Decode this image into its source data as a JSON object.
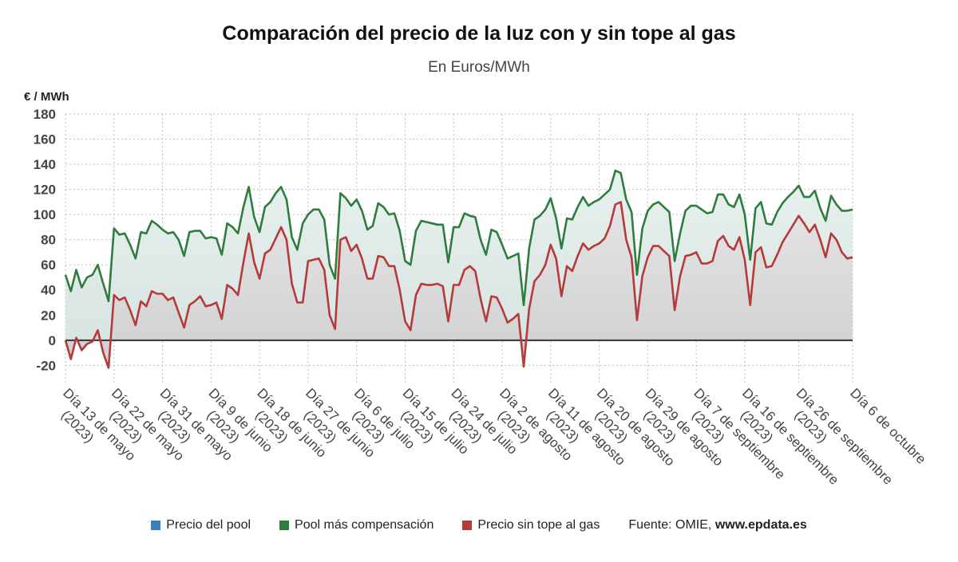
{
  "title": "Comparación del precio de la luz con y sin tope al gas",
  "subtitle": "En Euros/MWh",
  "y_unit": "€ / MWh",
  "legend": [
    {
      "label": "Precio del pool",
      "color": "#3a7fc1"
    },
    {
      "label": "Pool más compensación",
      "color": "#2e7d3e"
    },
    {
      "label": "Precio sin tope al gas",
      "color": "#b53a3a"
    }
  ],
  "source_prefix": "Fuente: OMIE, ",
  "source_site": "www.epdata.es",
  "chart_data": {
    "type": "line",
    "title": "Comparación del precio de la luz con y sin tope al gas",
    "subtitle": "En Euros/MWh",
    "ylabel": "€ / MWh",
    "ylim": [
      -35,
      180
    ],
    "yticks": [
      -20,
      0,
      20,
      40,
      60,
      80,
      100,
      120,
      140,
      160,
      180
    ],
    "grid": true,
    "legend_position": "bottom",
    "x_start": "2023-05-13",
    "x_end": "2023-10-06",
    "x_ticks": [
      {
        "date": "2023-05-13",
        "label": [
          "Día 13 de mayo",
          "(2023)"
        ]
      },
      {
        "date": "2023-05-22",
        "label": [
          "Día 22 de mayo",
          "(2023)"
        ]
      },
      {
        "date": "2023-05-31",
        "label": [
          "Día 31 de mayo",
          "(2023)"
        ]
      },
      {
        "date": "2023-06-09",
        "label": [
          "Día 9 de junio",
          "(2023)"
        ]
      },
      {
        "date": "2023-06-18",
        "label": [
          "Día 18 de junio",
          "(2023)"
        ]
      },
      {
        "date": "2023-06-27",
        "label": [
          "Día 27 de junio",
          "(2023)"
        ]
      },
      {
        "date": "2023-07-06",
        "label": [
          "Día 6 de julio",
          "(2023)"
        ]
      },
      {
        "date": "2023-07-15",
        "label": [
          "Día 15 de julio",
          "(2023)"
        ]
      },
      {
        "date": "2023-07-24",
        "label": [
          "Día 24 de julio",
          "(2023)"
        ]
      },
      {
        "date": "2023-08-02",
        "label": [
          "Día 2 de agosto",
          "(2023)"
        ]
      },
      {
        "date": "2023-08-11",
        "label": [
          "Día 11 de agosto",
          "(2023)"
        ]
      },
      {
        "date": "2023-08-20",
        "label": [
          "Día 20 de agosto",
          "(2023)"
        ]
      },
      {
        "date": "2023-08-29",
        "label": [
          "Día 29 de agosto",
          "(2023)"
        ]
      },
      {
        "date": "2023-09-07",
        "label": [
          "Día 7 de septiembre",
          "(2023)"
        ]
      },
      {
        "date": "2023-09-16",
        "label": [
          "Día 16 de septiembre",
          "(2023)"
        ]
      },
      {
        "date": "2023-09-26",
        "label": [
          "Día 26 de septiembre",
          "(2023)"
        ]
      },
      {
        "date": "2023-10-06",
        "label": [
          "Día 6 de octubre"
        ]
      }
    ],
    "series": [
      {
        "name": "Pool más compensación",
        "color": "#2e7d3e",
        "values": [
          52,
          39,
          56,
          42,
          50,
          52,
          60,
          45,
          31,
          89,
          84,
          85,
          76,
          65,
          86,
          85,
          95,
          92,
          88,
          85,
          86,
          80,
          67,
          86,
          87,
          87,
          81,
          82,
          81,
          68,
          93,
          90,
          85,
          106,
          122,
          98,
          86,
          106,
          110,
          117,
          122,
          112,
          82,
          72,
          93,
          100,
          104,
          104,
          96,
          60,
          49,
          117,
          113,
          107,
          112,
          103,
          88,
          91,
          109,
          106,
          100,
          101,
          87,
          63,
          60,
          87,
          95,
          94,
          93,
          92,
          92,
          62,
          90,
          90,
          101,
          99,
          98,
          80,
          68,
          88,
          86,
          76,
          65,
          67,
          69,
          28,
          73,
          96,
          99,
          104,
          113,
          97,
          73,
          97,
          96,
          106,
          114,
          107,
          110,
          112,
          116,
          120,
          135,
          133,
          112,
          102,
          52,
          89,
          103,
          108,
          110,
          106,
          102,
          63,
          85,
          103,
          107,
          107,
          104,
          101,
          102,
          116,
          116,
          108,
          106,
          116,
          100,
          64,
          105,
          110,
          93,
          92,
          102,
          109,
          114,
          118,
          123,
          114,
          114,
          119,
          105,
          95,
          115,
          108,
          103,
          103,
          104
        ]
      },
      {
        "name": "Precio sin tope al gas",
        "color": "#b53a3a",
        "values": [
          0,
          -15,
          2,
          -8,
          -3,
          -1,
          8,
          -10,
          -22,
          36,
          32,
          34,
          24,
          12,
          31,
          27,
          39,
          37,
          37,
          32,
          34,
          22,
          10,
          28,
          31,
          35,
          27,
          28,
          30,
          17,
          44,
          41,
          36,
          62,
          85,
          62,
          49,
          69,
          72,
          81,
          90,
          80,
          45,
          30,
          30,
          63,
          64,
          65,
          56,
          20,
          9,
          80,
          82,
          71,
          76,
          65,
          49,
          49,
          67,
          66,
          59,
          59,
          40,
          15,
          8,
          36,
          45,
          44,
          44,
          45,
          43,
          15,
          44,
          44,
          56,
          59,
          55,
          33,
          15,
          35,
          34,
          25,
          14,
          17,
          21,
          -21,
          25,
          47,
          52,
          60,
          76,
          65,
          35,
          59,
          55,
          67,
          77,
          72,
          75,
          77,
          81,
          91,
          108,
          110,
          80,
          66,
          16,
          51,
          66,
          75,
          75,
          71,
          67,
          24,
          51,
          67,
          68,
          70,
          61,
          61,
          63,
          79,
          83,
          75,
          72,
          82,
          64,
          28,
          70,
          74,
          58,
          59,
          68,
          78,
          85,
          92,
          99,
          93,
          86,
          92,
          80,
          66,
          85,
          80,
          70,
          65,
          66
        ]
      }
    ]
  }
}
